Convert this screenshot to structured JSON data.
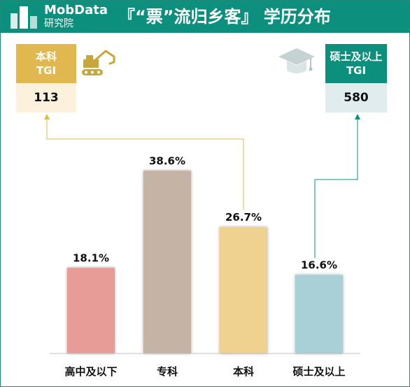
{
  "header": {
    "brand": "MobData",
    "brand_sub": "研究院",
    "title": "『“票”流归乡客』 学历分布",
    "icon": "building-logo-icon",
    "color": "#0d8f7e"
  },
  "tgi_left": {
    "name": "本科",
    "label": "TGI",
    "value": "113",
    "head_color": "#e0b84f",
    "value_bg": "#fbf1dc",
    "line_color": "#e0b84f",
    "icon": "excavator-icon"
  },
  "tgi_right": {
    "name": "硕士及以上",
    "label": "TGI",
    "value": "580",
    "head_color": "#0d8f7e",
    "value_bg": "#e1ecef",
    "line_color": "#0d8f7e",
    "icon": "graduation-cap-icon"
  },
  "chart_data": {
    "type": "bar",
    "categories": [
      "高中及以下",
      "专科",
      "本科",
      "硕士及以上"
    ],
    "values": [
      18.1,
      38.6,
      26.7,
      16.6
    ],
    "value_labels": [
      "18.1%",
      "38.6%",
      "26.7%",
      "16.6%"
    ],
    "colors": [
      "#e89c97",
      "#c5b3a5",
      "#efd28f",
      "#a9d0d6"
    ],
    "ylim": [
      0,
      45
    ],
    "grid": false,
    "legend": "none"
  }
}
